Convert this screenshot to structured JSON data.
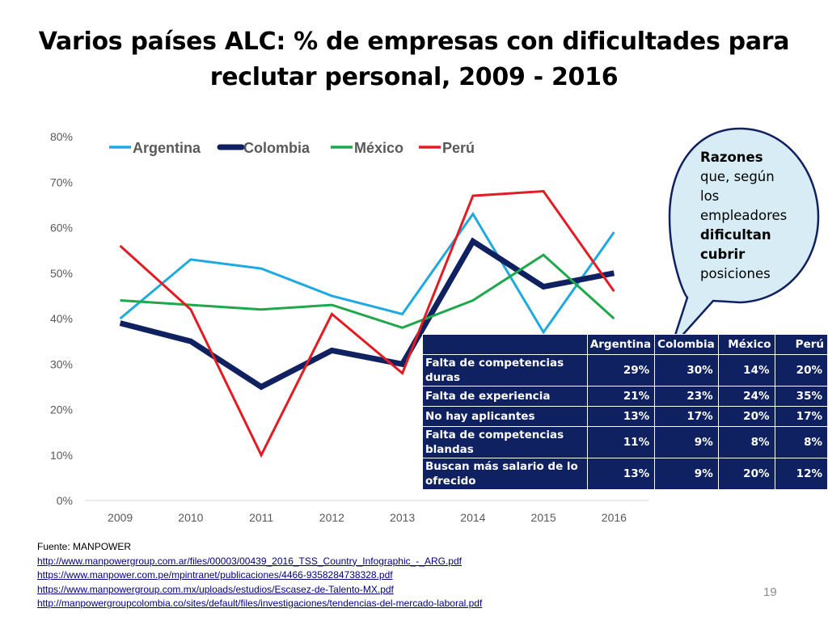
{
  "title": {
    "line1": "Varios países ALC: % de empresas con dificultades para",
    "line2": "reclutar personal, 2009 - 2016"
  },
  "chart_data": {
    "type": "line",
    "x": [
      "2009",
      "2010",
      "2011",
      "2012",
      "2013",
      "2014",
      "2015",
      "2016"
    ],
    "ylim": [
      0,
      80
    ],
    "yticks": [
      "0%",
      "10%",
      "20%",
      "30%",
      "40%",
      "50%",
      "60%",
      "70%",
      "80%"
    ],
    "grid": false,
    "legend_position": "top-left",
    "series": [
      {
        "name": "Argentina",
        "color": "#1fa9e1",
        "values": [
          40,
          53,
          51,
          45,
          41,
          63,
          37,
          59
        ]
      },
      {
        "name": "Colombia",
        "color": "#0f2160",
        "values": [
          39,
          35,
          25,
          33,
          30,
          57,
          47,
          50
        ]
      },
      {
        "name": "México",
        "color": "#1ea84a",
        "values": [
          44,
          43,
          42,
          43,
          38,
          44,
          54,
          40
        ]
      },
      {
        "name": "Perú",
        "color": "#e31b23",
        "values": [
          56,
          42,
          10,
          41,
          28,
          67,
          68,
          46
        ]
      }
    ]
  },
  "callout": {
    "bold1": "Razones",
    "text1": "que, según los empleadores",
    "bold2": "dificultan cubrir",
    "text2": "posiciones"
  },
  "table": {
    "headers": [
      "",
      "Argentina",
      "Colombia",
      "México",
      "Perú"
    ],
    "rows": [
      {
        "label": "Falta de competencias duras",
        "values": [
          "29%",
          "30%",
          "14%",
          "20%"
        ]
      },
      {
        "label": "Falta de experiencia",
        "values": [
          "21%",
          "23%",
          "24%",
          "35%"
        ]
      },
      {
        "label": "No hay aplicantes",
        "values": [
          "13%",
          "17%",
          "20%",
          "17%"
        ]
      },
      {
        "label": "Falta de competencias blandas",
        "values": [
          "11%",
          "9%",
          "8%",
          "8%"
        ]
      },
      {
        "label": "Buscan más salario de lo ofrecido",
        "values": [
          "13%",
          "9%",
          "20%",
          "12%"
        ]
      }
    ]
  },
  "source": {
    "label": "Fuente: MANPOWER",
    "links": [
      "http://www.manpowergroup.com.ar/files/00003/00439_2016_TSS_Country_Infographic_-_ARG.pdf",
      "https://www.manpower.com.pe/mpintranet/publicaciones/4466-9358284738328.pdf",
      "https://www.manpowergroup.com.mx/uploads/estudios/Escasez-de-Talento-MX.pdf",
      "http://manpowergroupcolombia.co/sites/default/files/investigaciones/tendencias-del-mercado-laboral.pdf"
    ]
  },
  "page_number": "19"
}
